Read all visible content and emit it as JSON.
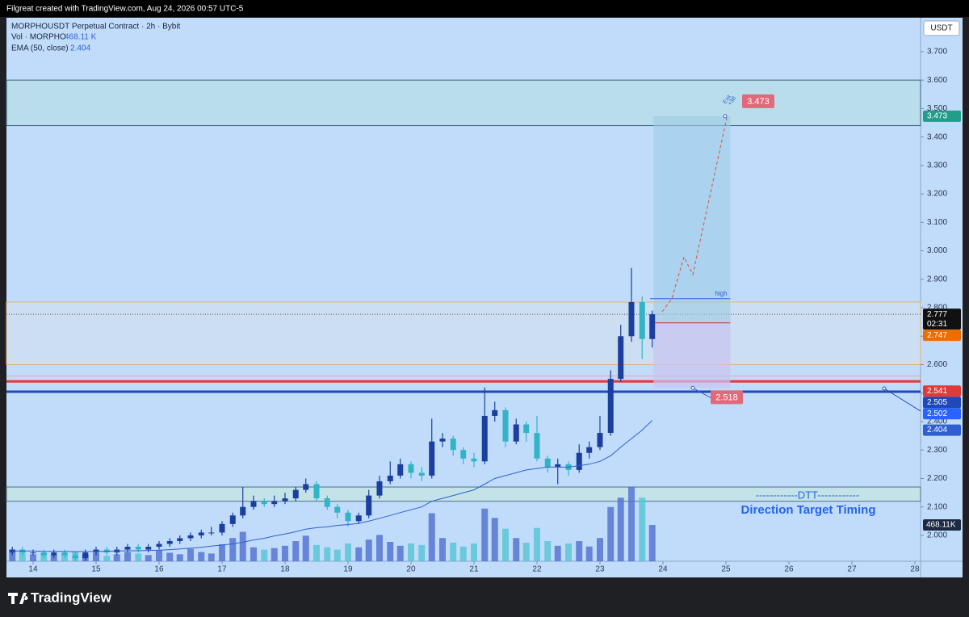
{
  "header": {
    "credit": "Filgreat created with TradingView.com, Aug 24, 2026 00:57 UTC-5"
  },
  "legend": {
    "volume": "468.11 K",
    "ema": "2.404"
  },
  "footer": {
    "brand": "TradingView"
  },
  "chart_data": {
    "type": "candlestick",
    "axis_unit": "USDT",
    "countdown": "02:31",
    "xlim": [
      13.577,
      28.09
    ],
    "xticks": [
      14,
      15,
      16,
      17,
      18,
      19,
      20,
      21,
      22,
      23,
      24,
      25,
      26,
      27,
      28
    ],
    "ylim": [
      1.909,
      3.819
    ],
    "yticks": [
      {
        "value": 2.0,
        "label": "2.000"
      },
      {
        "value": 2.1,
        "label": "2.100"
      },
      {
        "value": 2.2,
        "label": "2.200"
      },
      {
        "value": 2.3,
        "label": "2.300"
      },
      {
        "value": 2.4,
        "label": "2.400"
      },
      {
        "value": 2.5,
        "label": "2.500"
      },
      {
        "value": 2.6,
        "label": "2.600"
      },
      {
        "value": 2.7,
        "label": "2.700"
      },
      {
        "value": 2.8,
        "label": "2.800"
      },
      {
        "value": 2.9,
        "label": "2.900"
      },
      {
        "value": 3.0,
        "label": "3.000"
      },
      {
        "value": 3.1,
        "label": "3.100"
      },
      {
        "value": 3.2,
        "label": "3.200"
      },
      {
        "value": 3.3,
        "label": "3.300"
      },
      {
        "value": 3.4,
        "label": "3.400"
      },
      {
        "value": 3.5,
        "label": "3.500"
      },
      {
        "value": 3.6,
        "label": "3.600"
      },
      {
        "value": 3.7,
        "label": "3.700"
      }
    ],
    "x": [
      13.67,
      13.83,
      14.0,
      14.17,
      14.33,
      14.5,
      14.67,
      14.83,
      15.0,
      15.17,
      15.33,
      15.5,
      15.67,
      15.83,
      16.0,
      16.17,
      16.33,
      16.5,
      16.67,
      16.83,
      17.0,
      17.17,
      17.33,
      17.5,
      17.67,
      17.83,
      18.0,
      18.17,
      18.33,
      18.5,
      18.67,
      18.83,
      19.0,
      19.17,
      19.33,
      19.5,
      19.67,
      19.83,
      20.0,
      20.17,
      20.33,
      20.5,
      20.67,
      20.83,
      21.0,
      21.17,
      21.33,
      21.5,
      21.67,
      21.83,
      22.0,
      22.17,
      22.33,
      22.5,
      22.67,
      22.83,
      23.0,
      23.17,
      23.33,
      23.5,
      23.67,
      23.83
    ],
    "series": [
      {
        "name": "MORPHOUSDT Perpetual Contract · 2h · Bybit",
        "type": "candlestick",
        "up_color": "#1b3f9e",
        "down_color": "#31b4c6",
        "open": [
          1.94,
          1.95,
          1.94,
          1.94,
          1.93,
          1.94,
          1.93,
          1.92,
          1.94,
          1.95,
          1.94,
          1.95,
          1.96,
          1.95,
          1.96,
          1.97,
          1.98,
          1.99,
          2.0,
          2.01,
          2.01,
          2.04,
          2.07,
          2.1,
          2.12,
          2.11,
          2.12,
          2.13,
          2.16,
          2.18,
          2.13,
          2.1,
          2.08,
          2.05,
          2.07,
          2.14,
          2.19,
          2.21,
          2.25,
          2.22,
          2.21,
          2.33,
          2.34,
          2.3,
          2.27,
          2.26,
          2.42,
          2.44,
          2.33,
          2.39,
          2.36,
          2.27,
          2.24,
          2.25,
          2.23,
          2.29,
          2.31,
          2.36,
          2.55,
          2.7,
          2.82,
          2.69
        ],
        "high": [
          1.96,
          1.96,
          1.95,
          1.95,
          1.95,
          1.95,
          1.94,
          1.95,
          1.96,
          1.96,
          1.96,
          1.97,
          1.97,
          1.97,
          1.98,
          1.99,
          2.0,
          2.01,
          2.02,
          2.03,
          2.05,
          2.08,
          2.17,
          2.14,
          2.13,
          2.14,
          2.15,
          2.17,
          2.2,
          2.19,
          2.14,
          2.11,
          2.09,
          2.08,
          2.16,
          2.21,
          2.26,
          2.27,
          2.26,
          2.24,
          2.41,
          2.36,
          2.35,
          2.31,
          2.29,
          2.52,
          2.47,
          2.45,
          2.41,
          2.4,
          2.42,
          2.28,
          2.27,
          2.26,
          2.32,
          2.33,
          2.42,
          2.58,
          2.74,
          2.94,
          2.84,
          2.79
        ],
        "low": [
          1.93,
          1.93,
          1.93,
          1.92,
          1.92,
          1.92,
          1.91,
          1.91,
          1.93,
          1.93,
          1.93,
          1.94,
          1.94,
          1.94,
          1.95,
          1.96,
          1.97,
          1.98,
          1.99,
          2.0,
          2.0,
          2.03,
          2.06,
          2.09,
          2.1,
          2.1,
          2.11,
          2.12,
          2.15,
          2.12,
          2.09,
          2.06,
          2.03,
          2.04,
          2.06,
          2.13,
          2.18,
          2.2,
          2.2,
          2.19,
          2.2,
          2.31,
          2.28,
          2.25,
          2.24,
          2.25,
          2.4,
          2.31,
          2.32,
          2.33,
          2.26,
          2.22,
          2.18,
          2.21,
          2.22,
          2.27,
          2.3,
          2.35,
          2.54,
          2.68,
          2.62,
          2.66
        ],
        "close": [
          1.95,
          1.94,
          1.94,
          1.93,
          1.94,
          1.93,
          1.92,
          1.94,
          1.95,
          1.94,
          1.95,
          1.96,
          1.95,
          1.96,
          1.97,
          1.98,
          1.99,
          2.0,
          2.01,
          2.01,
          2.04,
          2.07,
          2.1,
          2.12,
          2.11,
          2.12,
          2.13,
          2.16,
          2.18,
          2.13,
          2.1,
          2.08,
          2.05,
          2.07,
          2.14,
          2.19,
          2.21,
          2.25,
          2.22,
          2.21,
          2.33,
          2.34,
          2.3,
          2.27,
          2.26,
          2.42,
          2.44,
          2.33,
          2.39,
          2.36,
          2.27,
          2.24,
          2.25,
          2.23,
          2.29,
          2.31,
          2.36,
          2.55,
          2.7,
          2.82,
          2.69,
          2.777
        ]
      },
      {
        "name": "Vol · MORPHO",
        "type": "volume",
        "up_color": "#5676d2",
        "down_color": "#5cc6d6",
        "values": [
          150,
          120,
          90,
          110,
          80,
          100,
          130,
          90,
          110,
          70,
          90,
          120,
          100,
          80,
          140,
          110,
          90,
          160,
          120,
          100,
          220,
          300,
          380,
          180,
          150,
          170,
          200,
          260,
          330,
          210,
          180,
          150,
          230,
          180,
          280,
          340,
          250,
          200,
          230,
          210,
          620,
          300,
          240,
          190,
          230,
          680,
          560,
          420,
          300,
          240,
          430,
          260,
          200,
          230,
          260,
          190,
          300,
          700,
          820,
          960,
          820,
          468.11
        ]
      },
      {
        "name": "EMA (50, close)",
        "type": "line",
        "color": "#2f5fd0",
        "values": [
          1.945,
          1.945,
          1.945,
          1.944,
          1.944,
          1.944,
          1.943,
          1.943,
          1.944,
          1.944,
          1.945,
          1.946,
          1.946,
          1.947,
          1.948,
          1.95,
          1.952,
          1.955,
          1.958,
          1.962,
          1.966,
          1.97,
          1.976,
          1.984,
          1.99,
          1.998,
          2.005,
          2.013,
          2.022,
          2.027,
          2.03,
          2.035,
          2.038,
          2.042,
          2.05,
          2.06,
          2.07,
          2.08,
          2.09,
          2.1,
          2.12,
          2.13,
          2.14,
          2.15,
          2.16,
          2.18,
          2.2,
          2.21,
          2.22,
          2.23,
          2.235,
          2.24,
          2.24,
          2.24,
          2.245,
          2.25,
          2.26,
          2.28,
          2.31,
          2.34,
          2.37,
          2.404
        ]
      }
    ],
    "zones": [
      {
        "from": 3.44,
        "to": 3.6,
        "fill": "#b7dde6",
        "stroke": "#3d5f7a"
      },
      {
        "from": 2.6,
        "to": 2.82,
        "fill": "#cfdfee",
        "stroke": "#e0b27a"
      },
      {
        "from": 2.12,
        "to": 2.17,
        "fill": "#c3e6e2",
        "stroke": "#4f6f86"
      }
    ],
    "levels": [
      {
        "value": 2.56,
        "color": "#f0a0a0",
        "width": 1
      },
      {
        "value": 2.541,
        "color": "#e23a3a",
        "width": 3
      },
      {
        "value": 2.505,
        "color": "#1f48b8",
        "width": 3
      }
    ],
    "high_level": {
      "value": 2.832,
      "label": "high"
    },
    "position": {
      "x_range": [
        23.85,
        25.07
      ],
      "entry": 2.747,
      "target": 3.473,
      "stop": 2.518
    },
    "price_tags": [
      {
        "value": 3.473,
        "color": "#1f9f8a"
      },
      {
        "value": 2.777,
        "color": "#111111"
      },
      {
        "value": 2.747,
        "color": "#ef6c00"
      },
      {
        "value": 2.541,
        "color": "#e23a3a"
      },
      {
        "value": 2.505,
        "color": "#1f48b8"
      },
      {
        "value": 2.502,
        "color": "#2962ff"
      },
      {
        "value": 2.404,
        "color": "#2f5fd0"
      }
    ],
    "volume_tag": {
      "value": 468.11,
      "label": "468.11K",
      "color": "#1e2a44"
    },
    "annotations": {
      "exit": "Exit",
      "exit_r": "+38",
      "dtt": "------------DTT------------",
      "dtt_sub": "Direction Target Timing"
    }
  }
}
